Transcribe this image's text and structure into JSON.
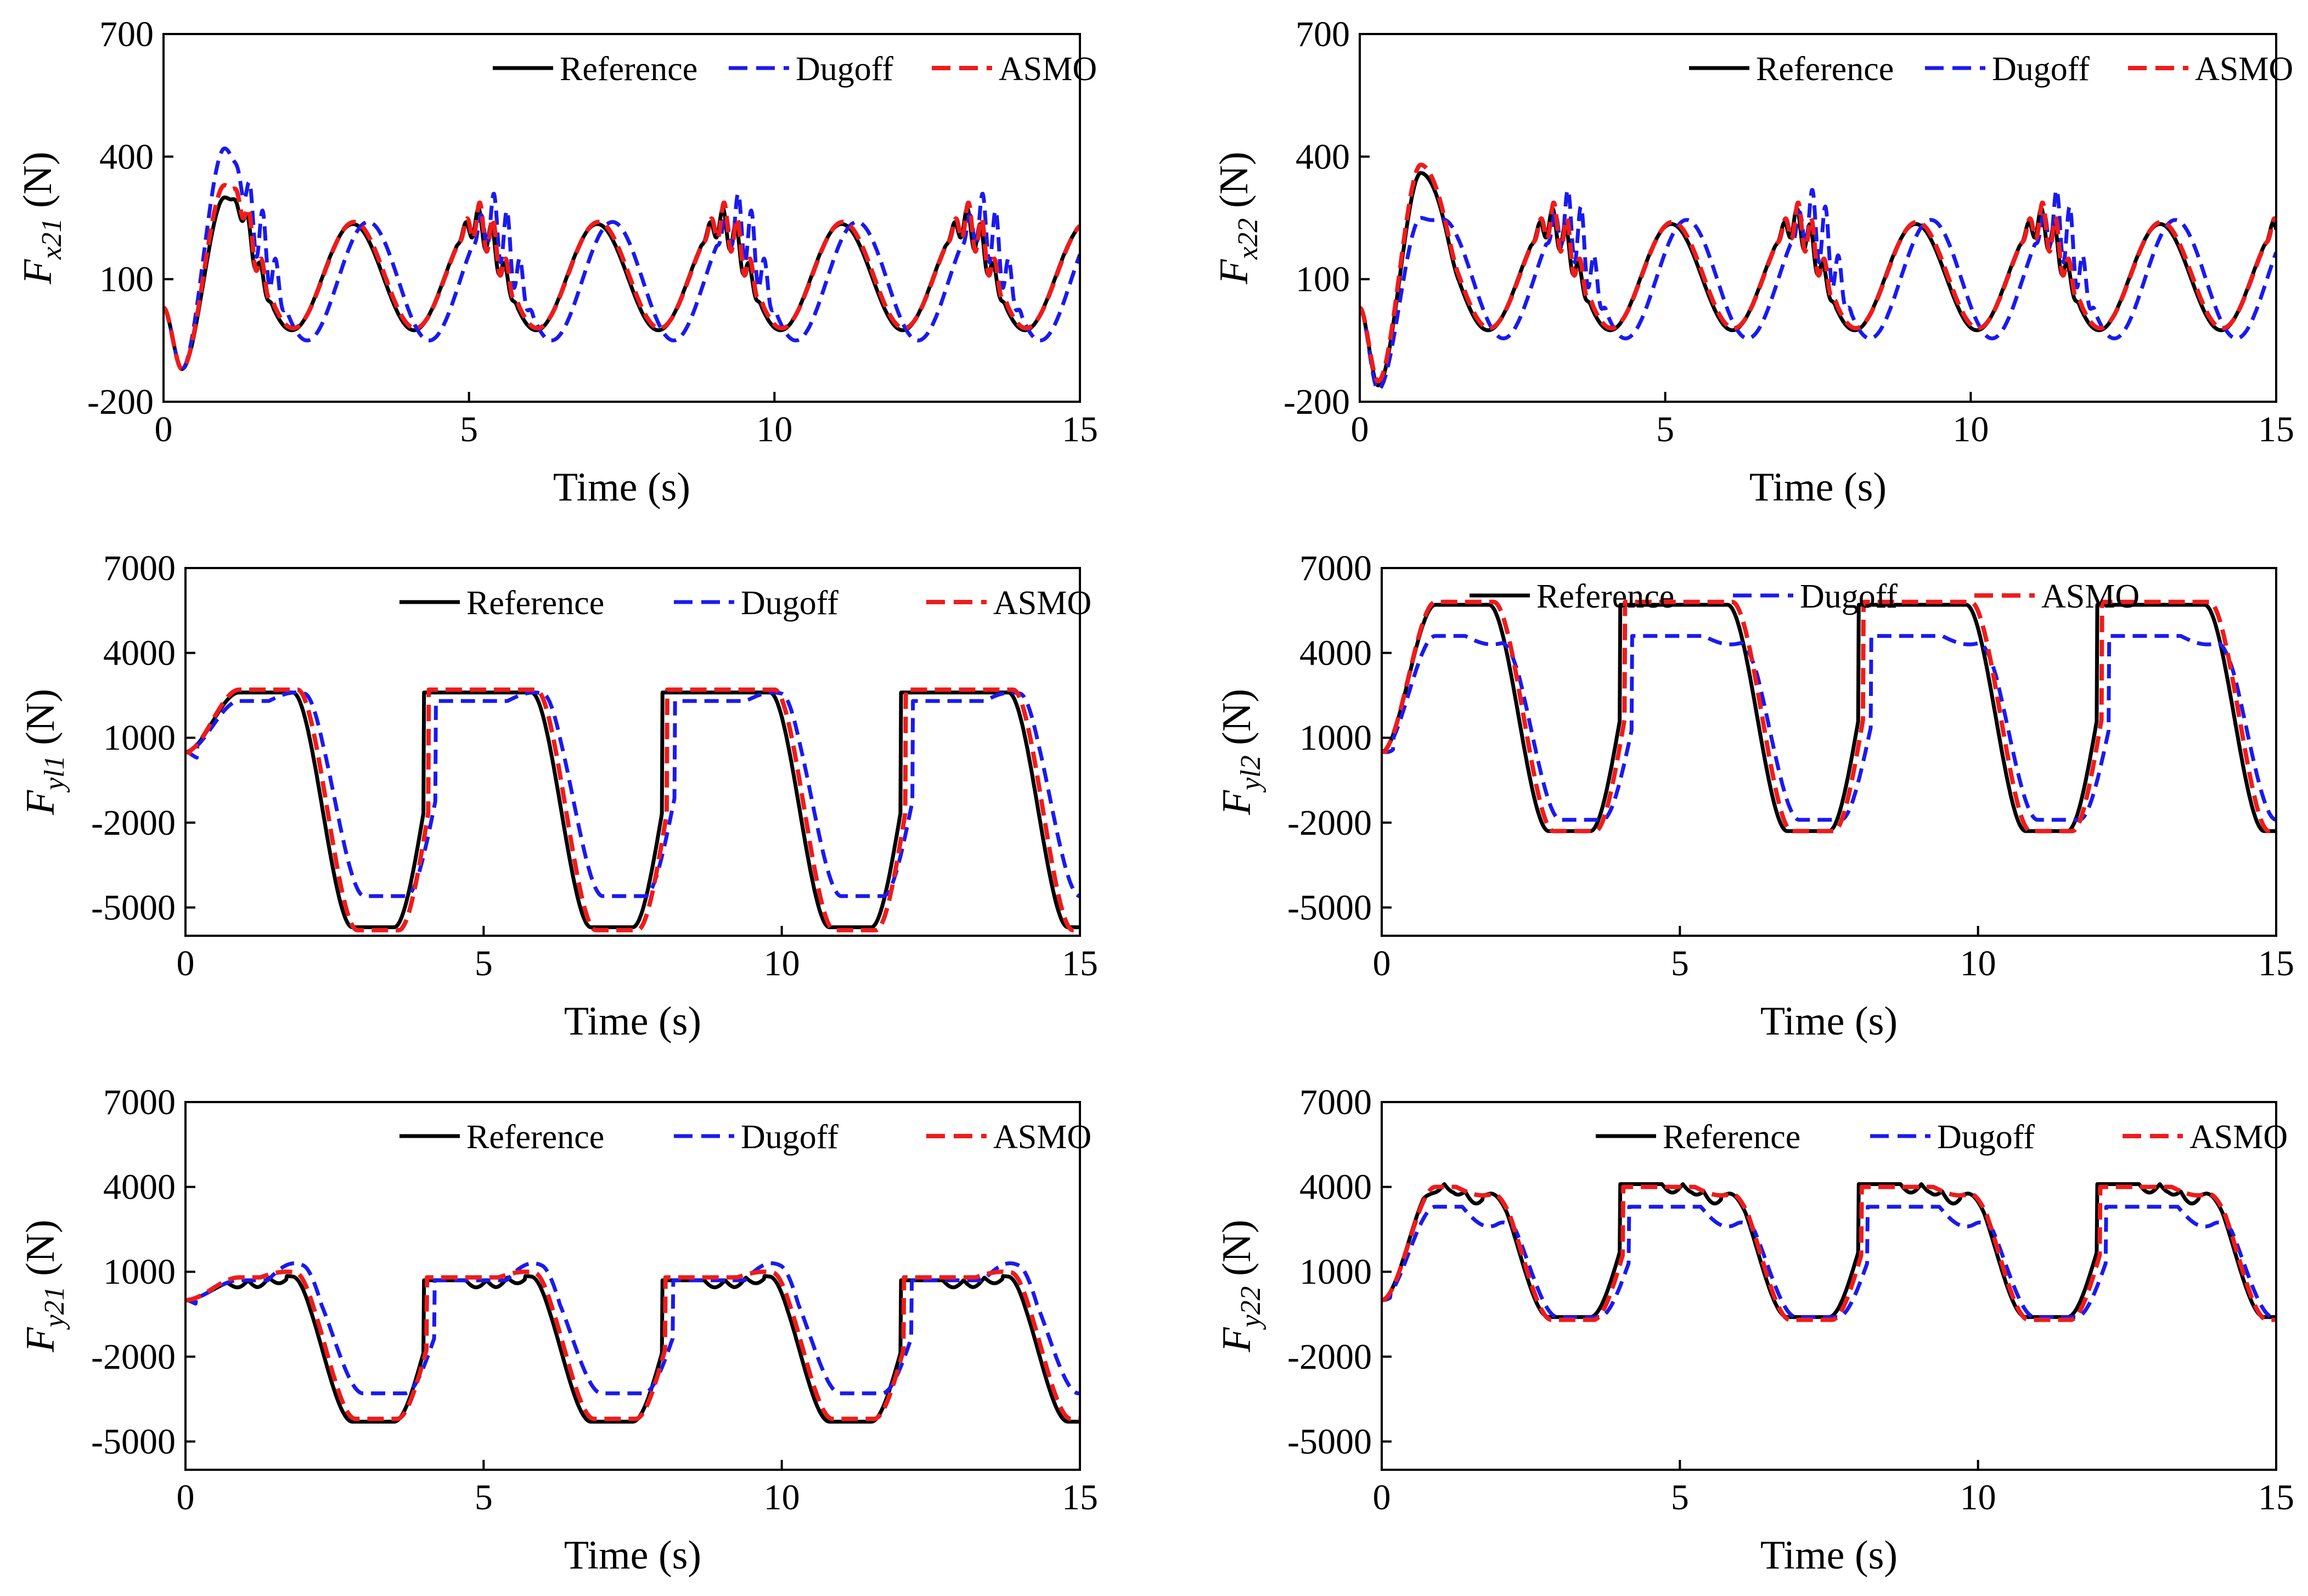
{
  "legend_entries": [
    {
      "name": "Reference",
      "color": "#000000",
      "dash": "solid"
    },
    {
      "name": "Dugoff",
      "color": "#1a1aee",
      "dash": "dashed"
    },
    {
      "name": "ASMO",
      "color": "#ee1c1c",
      "dash": "dashed"
    }
  ],
  "chart_data": [
    {
      "type": "line",
      "id": "fx21",
      "ylabel_main": "F",
      "ylabel_sub": "x21",
      "ylabel_unit": " (N)",
      "xlabel": "Time (s)",
      "xlim": [
        0,
        15
      ],
      "ylim": [
        -200,
        700
      ],
      "xticks": [
        0,
        5,
        10,
        15
      ],
      "yticks": [
        -200,
        100,
        400,
        700
      ],
      "legend_placement": "top-right",
      "series": [
        {
          "name": "Reference",
          "kind": "fx",
          "params": {
            "base": 105,
            "amp": 130,
            "phase": 0.0,
            "lag": 0.0,
            "startLow": -120,
            "peak1": 300,
            "ripple": 45,
            "ripplePeriod": 0.22
          }
        },
        {
          "name": "Dugoff",
          "kind": "fx",
          "params": {
            "base": 95,
            "amp": 145,
            "phase": 0.0,
            "lag": 0.25,
            "startLow": -120,
            "peak1": 420,
            "ripple": 80,
            "ripplePeriod": 0.22
          }
        },
        {
          "name": "ASMO",
          "kind": "fx",
          "params": {
            "base": 110,
            "amp": 130,
            "phase": 0.0,
            "lag": 0.02,
            "startLow": -120,
            "peak1": 330,
            "ripple": 55,
            "ripplePeriod": 0.22
          }
        }
      ]
    },
    {
      "type": "line",
      "id": "fx22",
      "ylabel_main": "F",
      "ylabel_sub": "x22",
      "ylabel_unit": " (N)",
      "xlabel": "Time (s)",
      "xlim": [
        0,
        15
      ],
      "ylim": [
        -200,
        700
      ],
      "xticks": [
        0,
        5,
        10,
        15
      ],
      "yticks": [
        -200,
        100,
        400,
        700
      ],
      "legend_placement": "top-right",
      "series": [
        {
          "name": "Reference",
          "kind": "fx",
          "params": {
            "base": 105,
            "amp": 130,
            "phase": 2.0,
            "lag": 0.0,
            "startLow": -160,
            "peak1": 360,
            "ripple": 45,
            "ripplePeriod": 0.22
          }
        },
        {
          "name": "Dugoff",
          "kind": "fx",
          "params": {
            "base": 100,
            "amp": 145,
            "phase": 2.0,
            "lag": 0.25,
            "startLow": -170,
            "peak1": 250,
            "ripple": 85,
            "ripplePeriod": 0.22
          }
        },
        {
          "name": "ASMO",
          "kind": "fx",
          "params": {
            "base": 110,
            "amp": 130,
            "phase": 2.0,
            "lag": 0.02,
            "startLow": -150,
            "peak1": 380,
            "ripple": 55,
            "ripplePeriod": 0.22
          }
        }
      ]
    },
    {
      "type": "line",
      "id": "fy11",
      "ylabel_main": "F",
      "ylabel_sub": "yl1",
      "ylabel_unit": " (N)",
      "xlabel": "Time (s)",
      "xlim": [
        0,
        15
      ],
      "ylim": [
        -6000,
        7000
      ],
      "xticks": [
        0,
        5,
        10,
        15
      ],
      "yticks": [
        -5000,
        -2000,
        1000,
        4000,
        7000
      ],
      "legend_placement": "top-right",
      "series": [
        {
          "name": "Reference",
          "kind": "fy",
          "params": {
            "hi": 2600,
            "lo": -5700,
            "lag": 0.0,
            "start": 500,
            "bump": 0
          }
        },
        {
          "name": "Dugoff",
          "kind": "fy",
          "params": {
            "hi": 2300,
            "lo": -4600,
            "lag": 0.2,
            "start": 500,
            "bump": 300
          }
        },
        {
          "name": "ASMO",
          "kind": "fy",
          "params": {
            "hi": 2700,
            "lo": -5800,
            "lag": 0.08,
            "start": 500,
            "bump": 0
          }
        }
      ]
    },
    {
      "type": "line",
      "id": "fy12",
      "ylabel_main": "F",
      "ylabel_sub": "yl2",
      "ylabel_unit": " (N)",
      "xlabel": "Time (s)",
      "xlim": [
        0,
        15
      ],
      "ylim": [
        -6000,
        7000
      ],
      "xticks": [
        0,
        5,
        10,
        15
      ],
      "yticks": [
        -5000,
        -2000,
        1000,
        4000,
        7000
      ],
      "legend_placement": "top",
      "series": [
        {
          "name": "Reference",
          "kind": "fy",
          "params": {
            "hi": 5700,
            "lo": -2300,
            "lag": 0.0,
            "start": 500,
            "bump": 0,
            "phase": 0
          }
        },
        {
          "name": "Dugoff",
          "kind": "fy",
          "params": {
            "hi": 4600,
            "lo": -1900,
            "lag": 0.2,
            "start": 500,
            "bump": -300,
            "phase": 0
          }
        },
        {
          "name": "ASMO",
          "kind": "fy",
          "params": {
            "hi": 5800,
            "lo": -2300,
            "lag": 0.08,
            "start": 500,
            "bump": 0,
            "phase": 0
          }
        }
      ]
    },
    {
      "type": "line",
      "id": "fy21",
      "ylabel_main": "F",
      "ylabel_sub": "y21",
      "ylabel_unit": " (N)",
      "xlabel": "Time (s)",
      "xlim": [
        0,
        15
      ],
      "ylim": [
        -6000,
        7000
      ],
      "xticks": [
        0,
        5,
        10,
        15
      ],
      "yticks": [
        -5000,
        -2000,
        1000,
        4000,
        7000
      ],
      "legend_placement": "top-right",
      "series": [
        {
          "name": "Reference",
          "kind": "fy",
          "params": {
            "hi": 700,
            "lo": -4300,
            "lag": 0.0,
            "start": 0,
            "bump": 150,
            "wiggle": 250
          }
        },
        {
          "name": "Dugoff",
          "kind": "fy",
          "params": {
            "hi": 700,
            "lo": -3300,
            "lag": 0.18,
            "start": 0,
            "bump": 600,
            "wiggle": 0
          }
        },
        {
          "name": "ASMO",
          "kind": "fy",
          "params": {
            "hi": 800,
            "lo": -4200,
            "lag": 0.05,
            "start": 0,
            "bump": 200,
            "wiggle": 0
          }
        }
      ]
    },
    {
      "type": "line",
      "id": "fy22",
      "ylabel_main": "F",
      "ylabel_sub": "y22",
      "ylabel_unit": " (N)",
      "xlabel": "Time (s)",
      "xlim": [
        0,
        15
      ],
      "ylim": [
        -6000,
        7000
      ],
      "xticks": [
        0,
        5,
        10,
        15
      ],
      "yticks": [
        -5000,
        -2000,
        1000,
        4000,
        7000
      ],
      "legend_placement": "top-right",
      "series": [
        {
          "name": "Reference",
          "kind": "fy",
          "params": {
            "hi": 4100,
            "lo": -600,
            "lag": 0.0,
            "start": 0,
            "bump": -400,
            "wiggle": 300,
            "phase": 0
          }
        },
        {
          "name": "Dugoff",
          "kind": "fy",
          "params": {
            "hi": 3300,
            "lo": -600,
            "lag": 0.15,
            "start": 0,
            "bump": -700,
            "wiggle": 0,
            "phase": 0
          }
        },
        {
          "name": "ASMO",
          "kind": "fy",
          "params": {
            "hi": 4000,
            "lo": -700,
            "lag": 0.05,
            "start": 0,
            "bump": -300,
            "wiggle": 0,
            "phase": 0
          }
        }
      ]
    }
  ]
}
